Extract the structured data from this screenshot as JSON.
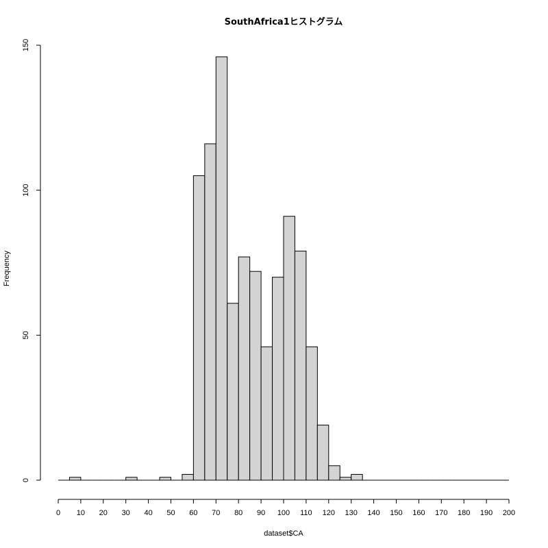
{
  "chart_data": {
    "type": "bar",
    "title": "SouthAfrica1ヒストグラム",
    "xlabel": "dataset$CA",
    "ylabel": "Frequency",
    "bin_width": 5,
    "bins": [
      {
        "start": 0,
        "end": 5,
        "count": 0
      },
      {
        "start": 5,
        "end": 10,
        "count": 1
      },
      {
        "start": 10,
        "end": 15,
        "count": 0
      },
      {
        "start": 15,
        "end": 20,
        "count": 0
      },
      {
        "start": 20,
        "end": 25,
        "count": 0
      },
      {
        "start": 25,
        "end": 30,
        "count": 0
      },
      {
        "start": 30,
        "end": 35,
        "count": 1
      },
      {
        "start": 35,
        "end": 40,
        "count": 0
      },
      {
        "start": 40,
        "end": 45,
        "count": 0
      },
      {
        "start": 45,
        "end": 50,
        "count": 1
      },
      {
        "start": 50,
        "end": 55,
        "count": 0
      },
      {
        "start": 55,
        "end": 60,
        "count": 2
      },
      {
        "start": 60,
        "end": 65,
        "count": 105
      },
      {
        "start": 65,
        "end": 70,
        "count": 116
      },
      {
        "start": 70,
        "end": 75,
        "count": 146
      },
      {
        "start": 75,
        "end": 80,
        "count": 61
      },
      {
        "start": 80,
        "end": 85,
        "count": 77
      },
      {
        "start": 85,
        "end": 90,
        "count": 72
      },
      {
        "start": 90,
        "end": 95,
        "count": 46
      },
      {
        "start": 95,
        "end": 100,
        "count": 70
      },
      {
        "start": 100,
        "end": 105,
        "count": 91
      },
      {
        "start": 105,
        "end": 110,
        "count": 79
      },
      {
        "start": 110,
        "end": 115,
        "count": 46
      },
      {
        "start": 115,
        "end": 120,
        "count": 19
      },
      {
        "start": 120,
        "end": 125,
        "count": 5
      },
      {
        "start": 125,
        "end": 130,
        "count": 1
      },
      {
        "start": 130,
        "end": 135,
        "count": 2
      },
      {
        "start": 135,
        "end": 140,
        "count": 0
      },
      {
        "start": 140,
        "end": 145,
        "count": 0
      },
      {
        "start": 145,
        "end": 150,
        "count": 0
      },
      {
        "start": 150,
        "end": 155,
        "count": 0
      },
      {
        "start": 155,
        "end": 160,
        "count": 0
      },
      {
        "start": 160,
        "end": 165,
        "count": 0
      },
      {
        "start": 165,
        "end": 170,
        "count": 0
      },
      {
        "start": 170,
        "end": 175,
        "count": 0
      },
      {
        "start": 175,
        "end": 180,
        "count": 0
      },
      {
        "start": 180,
        "end": 185,
        "count": 0
      },
      {
        "start": 185,
        "end": 190,
        "count": 0
      },
      {
        "start": 190,
        "end": 195,
        "count": 0
      },
      {
        "start": 195,
        "end": 200,
        "count": 0
      }
    ],
    "xlim": [
      0,
      200
    ],
    "ylim": [
      0,
      150
    ],
    "x_ticks": [
      "0",
      "10",
      "20",
      "30",
      "40",
      "50",
      "60",
      "70",
      "80",
      "90",
      "100",
      "110",
      "120",
      "130",
      "140",
      "150",
      "160",
      "170",
      "180",
      "190",
      "200"
    ],
    "y_ticks": [
      "0",
      "50",
      "100",
      "150"
    ],
    "grid": false,
    "colors": {
      "bar_fill": "#d3d3d3",
      "bar_stroke": "#000000"
    }
  }
}
